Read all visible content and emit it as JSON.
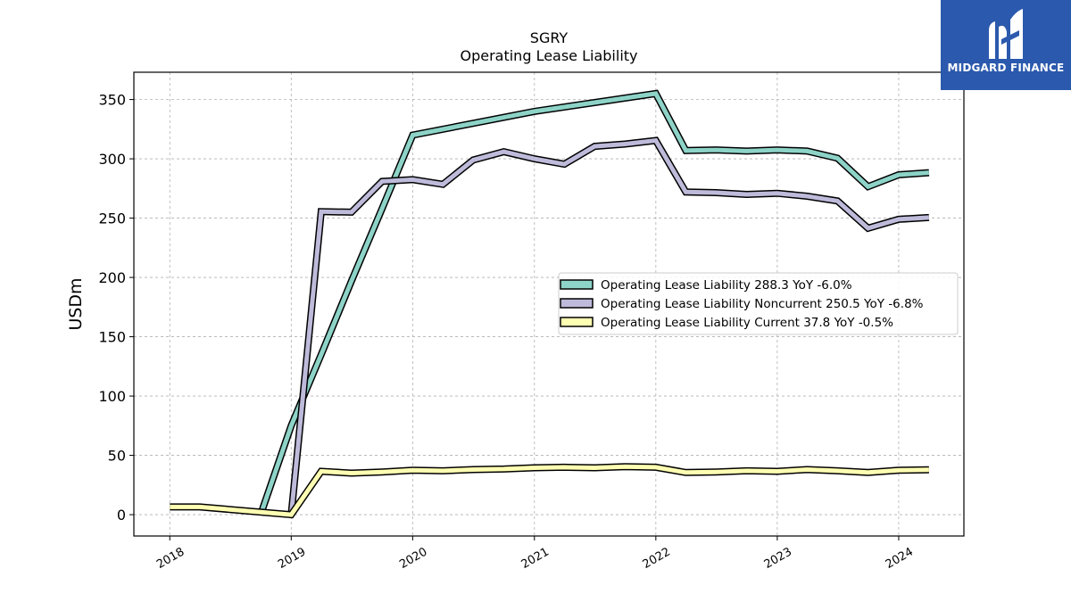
{
  "brand": {
    "name": "MIDGARD FINANCE",
    "bg_color": "#2b59ad",
    "logo_icon": "midgard-m-logo-icon"
  },
  "chart_data": {
    "type": "line",
    "title": "SGRY",
    "subtitle": "Operating Lease Liability",
    "xlabel": "",
    "ylabel": "USDm",
    "xlim": [
      "2017-09-15",
      "2024-07-15"
    ],
    "ylim": [
      -18,
      373
    ],
    "yticks": [
      0,
      50,
      100,
      150,
      200,
      250,
      300,
      350
    ],
    "xticks": [
      "2018",
      "2019",
      "2020",
      "2021",
      "2022",
      "2023",
      "2024"
    ],
    "grid": true,
    "legend_position": "center-right",
    "series": [
      {
        "name": "Operating Lease Liability",
        "legend_label": "Operating Lease Liability  288.3 YoY -6.0%",
        "color": "#8dd3c7",
        "x": [
          "2018-10-01",
          "2019-01-01",
          "2019-04-01",
          "2019-07-01",
          "2019-10-01",
          "2020-01-01",
          "2021-01-01",
          "2022-01-01",
          "2022-04-01",
          "2022-07-01",
          "2022-10-01",
          "2023-01-01",
          "2023-04-01",
          "2023-07-01",
          "2023-10-01",
          "2024-01-01",
          "2024-04-01"
        ],
        "values": [
          0,
          75,
          135,
          197,
          258,
          320,
          340,
          355,
          307,
          307.5,
          306.5,
          307.5,
          306.5,
          300.5,
          276.5,
          286.5,
          288.3
        ]
      },
      {
        "name": "Operating Lease Liability Noncurrent",
        "legend_label": "Operating Lease Liability Noncurrent  250.5 YoY -6.8%",
        "color": "#bebada",
        "x": [
          "2019-01-01",
          "2019-04-01",
          "2019-07-01",
          "2019-10-01",
          "2020-01-01",
          "2020-04-01",
          "2020-07-01",
          "2020-10-01",
          "2021-01-01",
          "2021-04-01",
          "2021-07-01",
          "2021-10-01",
          "2022-01-01",
          "2022-04-01",
          "2022-07-01",
          "2022-10-01",
          "2023-01-01",
          "2023-04-01",
          "2023-07-01",
          "2023-10-01",
          "2024-01-01",
          "2024-04-01"
        ],
        "values": [
          0,
          255.5,
          255,
          281,
          282.5,
          278.5,
          299,
          306,
          300,
          295.5,
          310.5,
          312.5,
          315.5,
          272,
          271.5,
          270,
          271,
          268.5,
          264.5,
          241.5,
          249,
          250.5
        ]
      },
      {
        "name": "Operating Lease Liability Current",
        "legend_label": "Operating Lease Liability Current  37.8 YoY -0.5%",
        "color": "#ffffb3",
        "x": [
          "2018-01-01",
          "2018-04-01",
          "2019-01-01",
          "2019-04-01",
          "2019-07-01",
          "2019-10-01",
          "2020-01-01",
          "2020-04-01",
          "2020-07-01",
          "2020-10-01",
          "2021-01-01",
          "2021-04-01",
          "2021-07-01",
          "2021-10-01",
          "2022-01-01",
          "2022-04-01",
          "2022-07-01",
          "2022-10-01",
          "2023-01-01",
          "2023-04-01",
          "2023-07-01",
          "2023-10-01",
          "2024-01-01",
          "2024-04-01"
        ],
        "values": [
          6.5,
          6.5,
          0,
          36.5,
          35,
          36,
          37.5,
          37,
          38,
          38.5,
          39.5,
          40,
          39.5,
          40.5,
          40,
          35.5,
          36,
          37,
          36.5,
          38,
          37,
          35.5,
          37.5,
          37.8
        ]
      }
    ]
  }
}
